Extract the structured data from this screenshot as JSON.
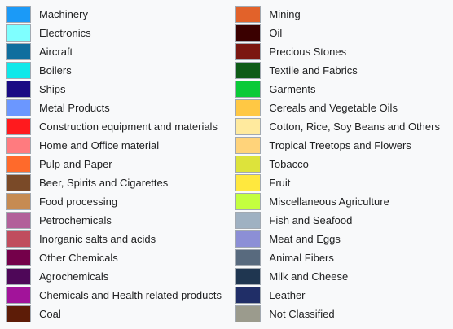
{
  "legend": {
    "left": [
      {
        "label": "Machinery",
        "color": "#1b9af7"
      },
      {
        "label": "Electronics",
        "color": "#7fffff"
      },
      {
        "label": "Aircraft",
        "color": "#0f6e9e"
      },
      {
        "label": "Boilers",
        "color": "#0fe8ea"
      },
      {
        "label": "Ships",
        "color": "#1a0b84"
      },
      {
        "label": "Metal Products",
        "color": "#6b97ff"
      },
      {
        "label": "Construction equipment and materials",
        "color": "#ff1a1e"
      },
      {
        "label": "Home and Office material",
        "color": "#ff7b7f"
      },
      {
        "label": "Pulp and Paper",
        "color": "#ff6a2b"
      },
      {
        "label": "Beer, Spirits and Cigarettes",
        "color": "#7a4a28"
      },
      {
        "label": "Food processing",
        "color": "#c68b52"
      },
      {
        "label": "Petrochemicals",
        "color": "#b2609a"
      },
      {
        "label": "Inorganic salts and acids",
        "color": "#c04d5e"
      },
      {
        "label": "Other Chemicals",
        "color": "#74004a"
      },
      {
        "label": "Agrochemicals",
        "color": "#4e0758"
      },
      {
        "label": "Chemicals and Health related products",
        "color": "#a2139a"
      },
      {
        "label": "Coal",
        "color": "#5d1c07"
      }
    ],
    "right": [
      {
        "label": "Mining",
        "color": "#e2622a"
      },
      {
        "label": "Oil",
        "color": "#3a0000"
      },
      {
        "label": "Precious Stones",
        "color": "#7b1711"
      },
      {
        "label": "Textile and Fabrics",
        "color": "#0e5c17"
      },
      {
        "label": "Garments",
        "color": "#0bca38"
      },
      {
        "label": "Cereals and Vegetable Oils",
        "color": "#ffc844"
      },
      {
        "label": "Cotton, Rice, Soy Beans and Others",
        "color": "#ffea9e"
      },
      {
        "label": "Tropical Treetops and Flowers",
        "color": "#ffd37a"
      },
      {
        "label": "Tobacco",
        "color": "#dde33b"
      },
      {
        "label": "Fruit",
        "color": "#ffe83e"
      },
      {
        "label": "Miscellaneous Agriculture",
        "color": "#c4ff3f"
      },
      {
        "label": "Fish and Seafood",
        "color": "#9fb1c2"
      },
      {
        "label": "Meat and Eggs",
        "color": "#8c8fd6"
      },
      {
        "label": "Animal Fibers",
        "color": "#586a7e"
      },
      {
        "label": "Milk and Cheese",
        "color": "#1f3650"
      },
      {
        "label": "Leather",
        "color": "#202e67"
      },
      {
        "label": "Not Classified",
        "color": "#9b9b8d"
      }
    ]
  }
}
